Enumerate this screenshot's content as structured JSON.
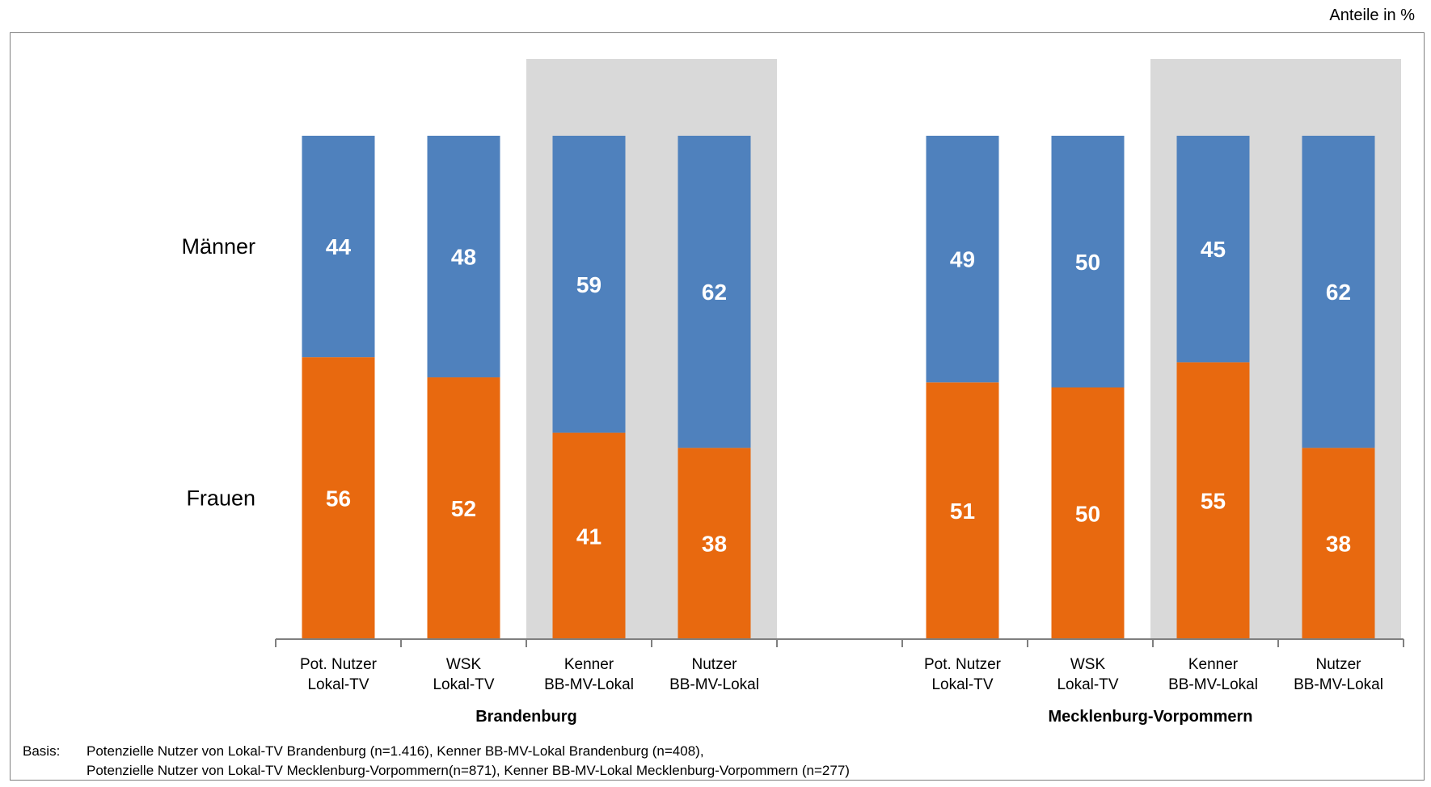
{
  "units_note": "Anteile in %",
  "chart_data": {
    "type": "bar",
    "stacked": true,
    "percent_stacked": true,
    "groups": [
      {
        "name": "Brandenburg",
        "categories": [
          {
            "line1": "Pot. Nutzer",
            "line2": "Lokal-TV",
            "highlighted": false
          },
          {
            "line1": "WSK",
            "line2": "Lokal-TV",
            "highlighted": false
          },
          {
            "line1": "Kenner",
            "line2": "BB-MV-Lokal",
            "highlighted": true
          },
          {
            "line1": "Nutzer",
            "line2": "BB-MV-Lokal",
            "highlighted": true
          }
        ],
        "series": [
          {
            "name": "Frauen",
            "values": [
              56,
              52,
              41,
              38
            ]
          },
          {
            "name": "Männer",
            "values": [
              44,
              48,
              59,
              62
            ]
          }
        ]
      },
      {
        "name": "Mecklenburg-Vorpommern",
        "categories": [
          {
            "line1": "Pot. Nutzer",
            "line2": "Lokal-TV",
            "highlighted": false
          },
          {
            "line1": "WSK",
            "line2": "Lokal-TV",
            "highlighted": false
          },
          {
            "line1": "Kenner",
            "line2": "BB-MV-Lokal",
            "highlighted": true
          },
          {
            "line1": "Nutzer",
            "line2": "BB-MV-Lokal",
            "highlighted": true
          }
        ],
        "series": [
          {
            "name": "Frauen",
            "values": [
              51,
              50,
              55,
              38
            ]
          },
          {
            "name": "Männer",
            "values": [
              49,
              50,
              45,
              62
            ]
          }
        ]
      }
    ],
    "series_labels": [
      "Männer",
      "Frauen"
    ],
    "colors": {
      "Männer": "#4f81bd",
      "Frauen": "#e8690f",
      "highlight_band": "#d9d9d9",
      "axis": "#7f7f7f"
    },
    "ylim": [
      0,
      100
    ]
  },
  "basis": {
    "label": "Basis:",
    "line1": "Potenzielle Nutzer von Lokal-TV Brandenburg (n=1.416), Kenner BB-MV-Lokal Brandenburg (n=408),",
    "line2": "Potenzielle Nutzer von Lokal-TV Mecklenburg-Vorpommern(n=871), Kenner BB-MV-Lokal Mecklenburg-Vorpommern (n=277)"
  }
}
